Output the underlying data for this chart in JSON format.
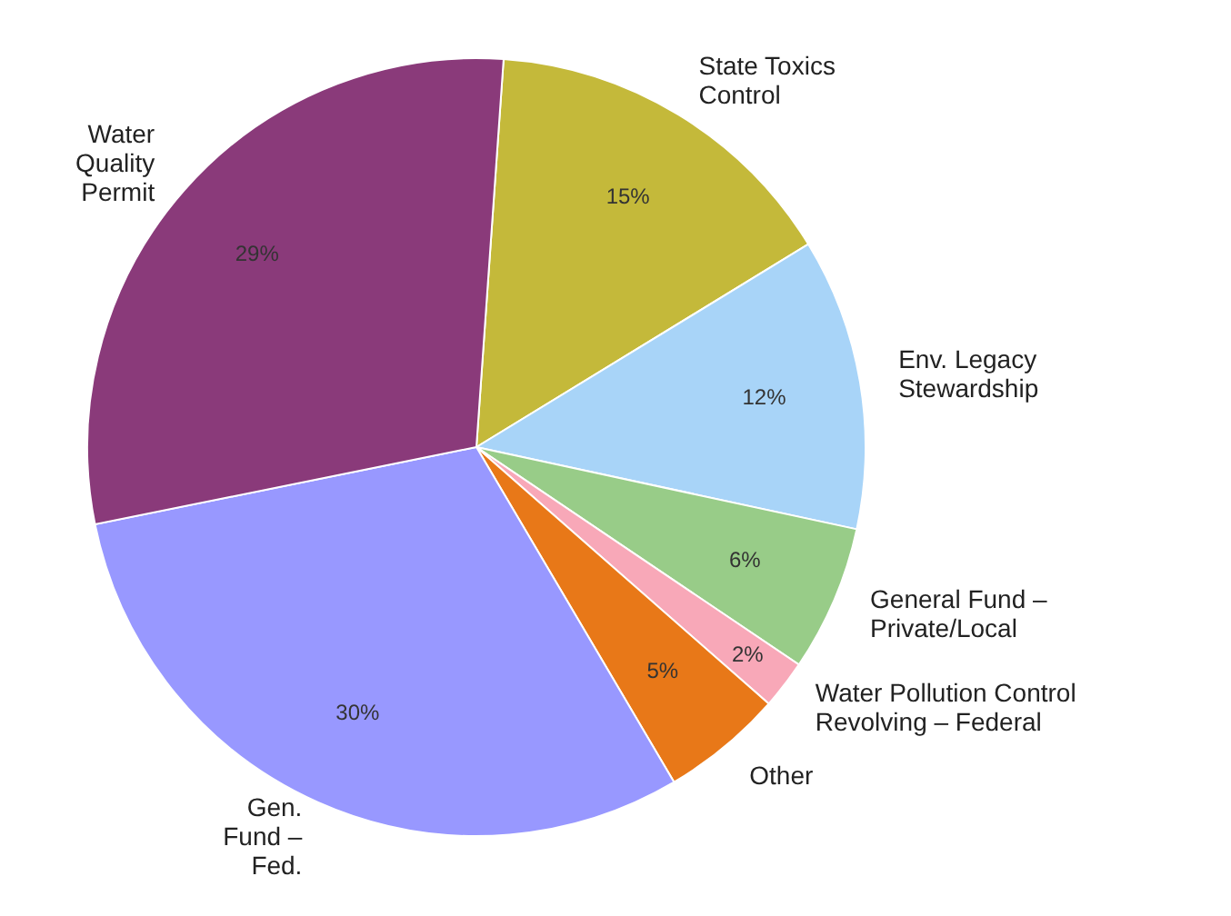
{
  "chart_data": {
    "type": "pie",
    "categories": [
      "State Toxics Control",
      "Env. Legacy Stewardship",
      "General Fund – Private/Local",
      "Water Pollution Control Revolving – Federal",
      "Other",
      "Gen. Fund – Fed.",
      "Water Quality Permit"
    ],
    "values": [
      15,
      12,
      6,
      2,
      5,
      30,
      29
    ],
    "value_labels": [
      "15%",
      "12%",
      "6%",
      "2%",
      "5%",
      "30%",
      "29%"
    ],
    "colors": [
      "#c4b93a",
      "#a8d4f8",
      "#98cc88",
      "#f8a8b8",
      "#e87818",
      "#9898ff",
      "#8a3a7a"
    ]
  }
}
